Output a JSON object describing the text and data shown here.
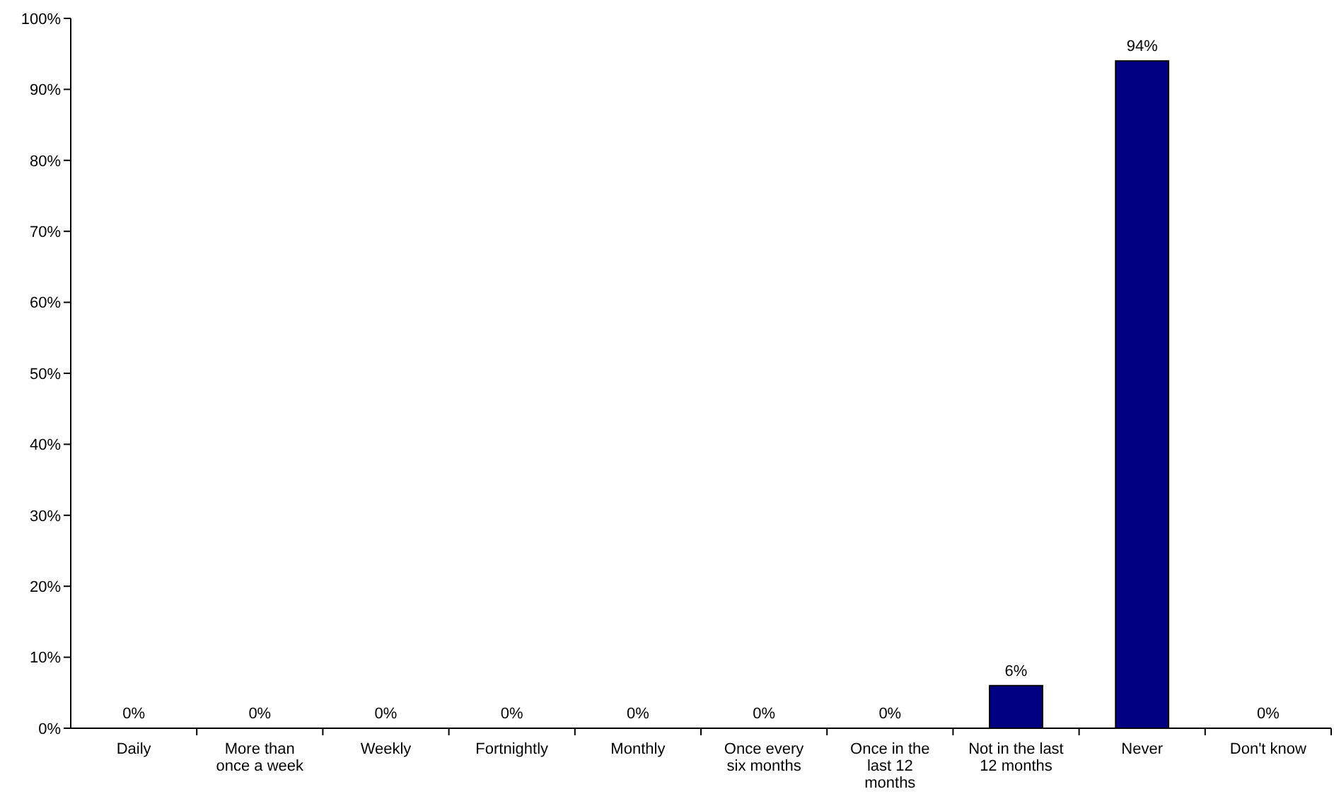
{
  "chart_data": {
    "type": "bar",
    "categories": [
      "Daily",
      "More than once a week",
      "Weekly",
      "Fortnightly",
      "Monthly",
      "Once every six months",
      "Once in the last 12 months",
      "Not in the last 12 months",
      "Never",
      "Don't know"
    ],
    "values": [
      0,
      0,
      0,
      0,
      0,
      0,
      0,
      6,
      94,
      0
    ],
    "value_labels": [
      "0%",
      "0%",
      "0%",
      "0%",
      "0%",
      "0%",
      "0%",
      "6%",
      "94%",
      "0%"
    ],
    "color": "#000080",
    "ylim": [
      0,
      100
    ],
    "yticks": [
      {
        "value": 0,
        "label": "0%"
      },
      {
        "value": 10,
        "label": "10%"
      },
      {
        "value": 20,
        "label": "20%"
      },
      {
        "value": 30,
        "label": "30%"
      },
      {
        "value": 40,
        "label": "40%"
      },
      {
        "value": 50,
        "label": "50%"
      },
      {
        "value": 60,
        "label": "60%"
      },
      {
        "value": 70,
        "label": "70%"
      },
      {
        "value": 80,
        "label": "80%"
      },
      {
        "value": 90,
        "label": "90%"
      },
      {
        "value": 100,
        "label": "100%"
      }
    ],
    "grid": false
  }
}
